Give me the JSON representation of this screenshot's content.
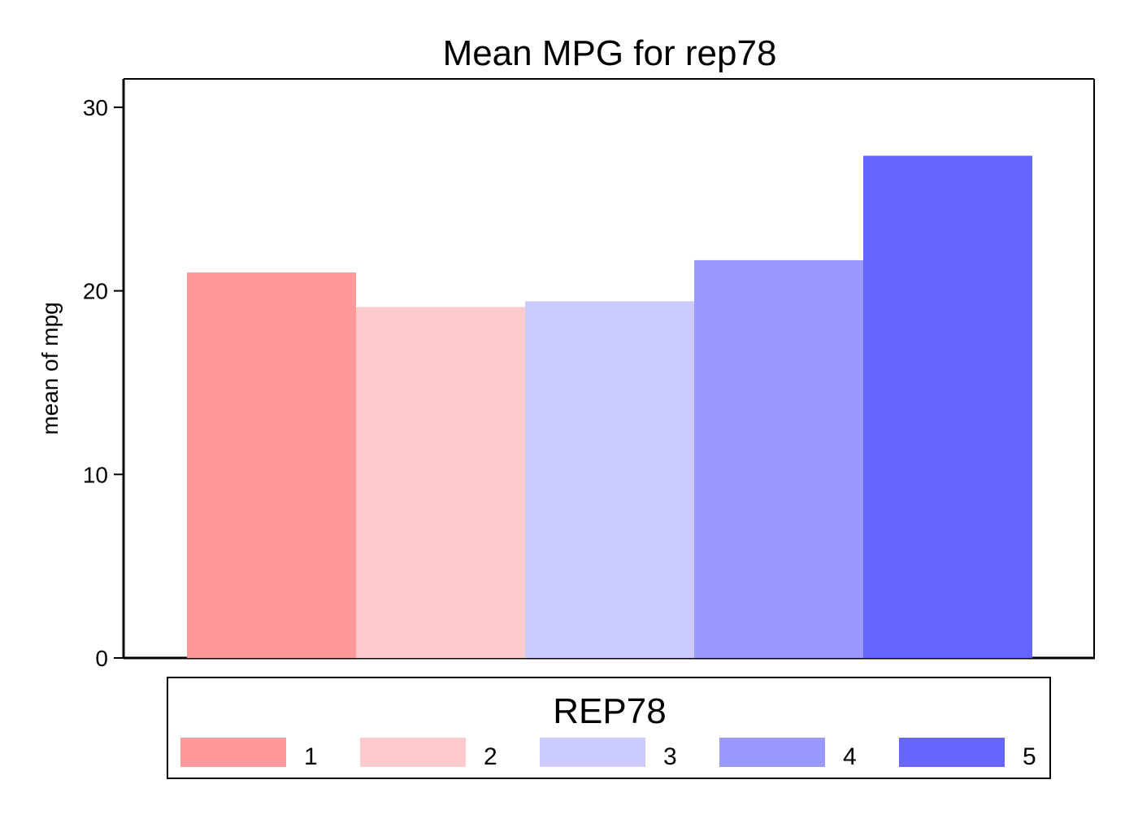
{
  "chart_data": {
    "type": "bar",
    "title": "Mean MPG for rep78",
    "xlabel": "",
    "ylabel": "mean of mpg",
    "ylim": [
      0,
      31.5
    ],
    "yticks": [
      "0",
      "10",
      "20",
      "30"
    ],
    "grid": false,
    "legend": {
      "title": "REP78",
      "placement": "bottom"
    },
    "series": [
      {
        "name": "1",
        "value": 21.0,
        "color": "#ff9999"
      },
      {
        "name": "2",
        "value": 19.125,
        "color": "#fdcbcb"
      },
      {
        "name": "3",
        "value": 19.43,
        "color": "#cccbfd"
      },
      {
        "name": "4",
        "value": 21.67,
        "color": "#9999ff"
      },
      {
        "name": "5",
        "value": 27.36,
        "color": "#6666ff"
      }
    ]
  }
}
